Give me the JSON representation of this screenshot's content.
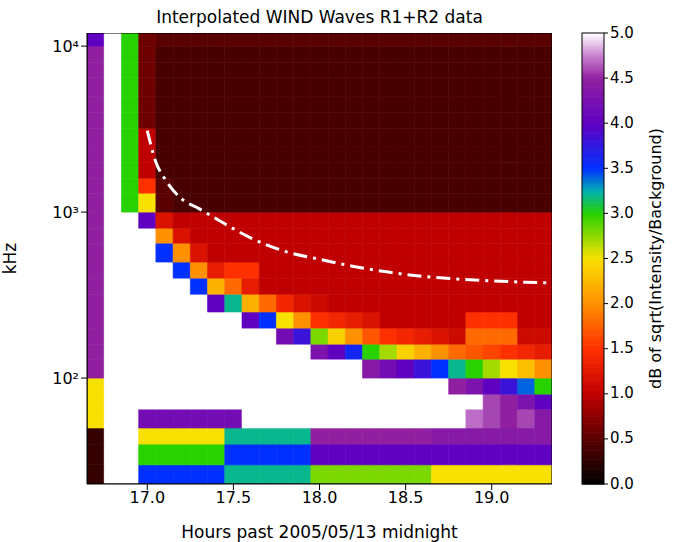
{
  "chart_data": {
    "type": "heatmap",
    "title": "Interpolated WIND Waves R1+R2 data",
    "x_label": "Hours past 2005/05/13 midnight",
    "y_label": "kHz",
    "log": "y",
    "grid": false,
    "xlim": [
      16.65,
      19.35
    ],
    "xticks": [
      {
        "value": 17,
        "label": "17.0"
      },
      {
        "value": 17.5,
        "label": "17.5"
      },
      {
        "value": 18,
        "label": "18.0"
      },
      {
        "value": 18.5,
        "label": "18.5"
      },
      {
        "value": 19,
        "label": "19.0"
      }
    ],
    "ylim": [
      23,
      12000
    ],
    "yticks": [
      {
        "value": 100,
        "label": "10²"
      },
      {
        "value": 1000,
        "label": "10³"
      },
      {
        "value": 10000,
        "label": "10⁴"
      }
    ],
    "x_bins": [
      16.65,
      16.75,
      16.85,
      16.95,
      17.05,
      17.15,
      17.25,
      17.35,
      17.45,
      17.55,
      17.65,
      17.75,
      17.85,
      17.95,
      18.05,
      18.15,
      18.25,
      18.35,
      18.45,
      18.55,
      18.65,
      18.75,
      18.85,
      18.95,
      19.05,
      19.15,
      19.25,
      19.35
    ],
    "y_bins": [
      23,
      30,
      40,
      50,
      65,
      80,
      100,
      130,
      160,
      200,
      250,
      320,
      400,
      500,
      650,
      800,
      1000,
      1300,
      1600,
      2000,
      2500,
      3200,
      4000,
      5000,
      6500,
      8000,
      10000,
      12000
    ],
    "cells": [
      [
        0.3,
        5,
        5,
        3.5,
        3.5,
        3.5,
        3.5,
        3.5,
        3.2,
        3.2,
        3.2,
        3.2,
        3.2,
        2.8,
        2.8,
        2.8,
        2.8,
        2.8,
        2.8,
        2.8,
        2.5,
        2.5,
        2.5,
        2.5,
        2.5,
        2.5,
        2.5
      ],
      [
        0.3,
        5,
        5,
        3,
        3,
        3,
        3,
        3,
        3.5,
        3.5,
        3.5,
        3.5,
        3.5,
        4,
        4,
        4,
        4,
        4,
        4,
        4,
        4,
        4,
        4,
        4,
        4,
        4,
        4
      ],
      [
        0.3,
        5,
        5,
        2.5,
        2.5,
        2.5,
        2.5,
        2.5,
        3.2,
        3.2,
        3.2,
        3.2,
        3.2,
        4.5,
        4.5,
        4.5,
        4.5,
        4.5,
        4.5,
        4.5,
        4.4,
        4.4,
        4.4,
        4.4,
        4.4,
        4.4,
        4.4
      ],
      [
        2.5,
        5,
        5,
        4.2,
        4.2,
        4.2,
        4.2,
        4.2,
        4.2,
        5,
        5,
        5,
        5,
        5,
        5,
        5,
        5,
        5,
        5,
        5,
        5,
        5,
        4.7,
        4.6,
        4.5,
        4.6,
        4.4
      ],
      [
        2.5,
        5,
        5,
        5,
        5,
        5,
        5,
        5,
        5,
        5,
        5,
        5,
        5,
        5,
        5,
        5,
        5,
        5,
        5,
        5,
        5,
        5,
        5,
        4.6,
        4.5,
        4.3,
        4.0
      ],
      [
        2.5,
        5,
        5,
        5,
        5,
        5,
        5,
        5,
        5,
        5,
        5,
        5,
        5,
        5,
        5,
        5,
        5,
        5,
        5,
        5,
        5,
        4.5,
        4.3,
        4.0,
        3.8,
        3.4,
        3.0
      ],
      [
        4.5,
        5,
        5,
        5,
        5,
        5,
        5,
        5,
        5,
        5,
        5,
        5,
        5,
        5,
        5,
        5,
        4.4,
        4.2,
        4.0,
        3.8,
        3.5,
        3.2,
        3.0,
        2.7,
        2.5,
        2.3,
        2.0
      ],
      [
        4.5,
        5,
        5,
        5,
        5,
        5,
        5,
        5,
        5,
        5,
        5,
        5,
        5,
        4.3,
        4.0,
        3.6,
        3.0,
        2.7,
        2.4,
        2.2,
        2.0,
        1.8,
        1.7,
        1.6,
        1.5,
        1.4,
        1.3
      ],
      [
        4.5,
        5,
        5,
        5,
        5,
        5,
        5,
        5,
        5,
        5,
        5,
        4.2,
        3.8,
        2.8,
        2.4,
        2.0,
        1.7,
        1.5,
        1.4,
        1.3,
        1.2,
        1.1,
        1.8,
        1.8,
        1.8,
        1.1,
        1.1
      ],
      [
        4.5,
        5,
        5,
        5,
        5,
        5,
        5,
        5,
        5,
        4,
        3.5,
        2.5,
        2.0,
        1.5,
        1.4,
        1.3,
        1.2,
        1,
        1,
        1,
        1,
        1,
        1.5,
        1.5,
        1.5,
        1,
        1
      ],
      [
        4.5,
        5,
        5,
        5,
        5,
        5,
        5,
        4,
        3.2,
        2.2,
        1.8,
        1.4,
        1.2,
        1.1,
        1,
        1,
        1,
        1,
        1,
        1,
        1,
        1,
        1,
        1,
        1,
        1,
        1
      ],
      [
        4.5,
        5,
        5,
        5,
        5,
        5,
        3.5,
        2.2,
        1.8,
        1.3,
        1,
        1,
        1,
        1,
        1,
        1,
        1,
        1,
        1,
        1,
        1,
        1,
        1,
        1,
        1,
        1,
        1
      ],
      [
        4.5,
        5,
        5,
        5,
        5,
        3.5,
        2.0,
        1.3,
        1.5,
        1.5,
        1,
        1,
        1,
        1,
        1,
        1,
        1,
        1,
        1,
        1,
        1,
        1,
        1,
        1,
        1,
        1,
        1
      ],
      [
        4.5,
        5,
        5,
        5,
        3.5,
        2.0,
        1.2,
        1,
        1,
        1,
        1,
        1,
        1,
        1,
        1,
        1,
        1,
        1,
        1,
        1,
        1,
        1,
        1,
        1,
        1,
        1,
        1
      ],
      [
        4.5,
        5,
        5,
        5,
        2.0,
        1.2,
        1,
        1,
        1,
        1,
        1,
        1,
        1,
        1,
        1,
        1,
        1,
        1,
        1,
        1,
        1,
        1,
        1,
        1,
        1,
        1,
        1
      ],
      [
        4.5,
        5,
        5,
        4,
        1.2,
        1,
        1,
        1,
        1,
        1,
        1,
        1,
        1,
        1,
        1,
        1,
        1,
        1,
        1,
        1,
        1,
        1,
        1,
        1,
        1,
        1,
        1
      ],
      [
        4.5,
        5,
        3,
        2.5,
        0.5,
        0.4,
        0.4,
        0.4,
        0.4,
        0.4,
        0.4,
        0.4,
        0.4,
        0.4,
        0.4,
        0.4,
        0.4,
        0.4,
        0.4,
        0.4,
        0.4,
        0.4,
        0.4,
        0.4,
        0.4,
        0.4,
        0.4
      ],
      [
        4.5,
        5,
        3,
        1.5,
        0.5,
        0.4,
        0.4,
        0.4,
        0.4,
        0.4,
        0.4,
        0.4,
        0.4,
        0.4,
        0.4,
        0.4,
        0.4,
        0.4,
        0.4,
        0.4,
        0.4,
        0.4,
        0.4,
        0.4,
        0.4,
        0.4,
        0.4
      ],
      [
        4.5,
        5,
        3,
        1.0,
        0.4,
        0.4,
        0.4,
        0.4,
        0.4,
        0.4,
        0.4,
        0.4,
        0.4,
        0.4,
        0.4,
        0.4,
        0.4,
        0.4,
        0.4,
        0.4,
        0.4,
        0.4,
        0.4,
        0.4,
        0.4,
        0.4,
        0.4
      ],
      [
        4.5,
        5,
        3,
        1.0,
        0.4,
        0.4,
        0.4,
        0.4,
        0.4,
        0.4,
        0.4,
        0.4,
        0.4,
        0.4,
        0.4,
        0.4,
        0.4,
        0.4,
        0.4,
        0.4,
        0.4,
        0.4,
        0.4,
        0.4,
        0.4,
        0.4,
        0.4
      ],
      [
        4.5,
        5,
        3,
        1.0,
        0.4,
        0.4,
        0.4,
        0.4,
        0.4,
        0.4,
        0.4,
        0.4,
        0.4,
        0.4,
        0.4,
        0.4,
        0.4,
        0.4,
        0.4,
        0.4,
        0.4,
        0.4,
        0.4,
        0.4,
        0.4,
        0.4,
        0.4
      ],
      [
        4.5,
        5,
        3,
        0.6,
        0.4,
        0.4,
        0.4,
        0.4,
        0.4,
        0.4,
        0.4,
        0.4,
        0.4,
        0.4,
        0.4,
        0.4,
        0.4,
        0.4,
        0.4,
        0.4,
        0.4,
        0.4,
        0.4,
        0.4,
        0.4,
        0.4,
        0.4
      ],
      [
        4.5,
        5,
        3,
        0.6,
        0.4,
        0.4,
        0.4,
        0.4,
        0.4,
        0.4,
        0.4,
        0.4,
        0.4,
        0.4,
        0.4,
        0.4,
        0.4,
        0.4,
        0.4,
        0.4,
        0.4,
        0.4,
        0.4,
        0.4,
        0.4,
        0.4,
        0.4
      ],
      [
        4.5,
        5,
        3,
        0.6,
        0.4,
        0.4,
        0.4,
        0.4,
        0.4,
        0.4,
        0.4,
        0.4,
        0.4,
        0.4,
        0.4,
        0.4,
        0.4,
        0.4,
        0.4,
        0.4,
        0.4,
        0.4,
        0.4,
        0.4,
        0.4,
        0.4,
        0.4
      ],
      [
        4.5,
        5,
        3,
        0.6,
        0.4,
        0.4,
        0.4,
        0.4,
        0.4,
        0.4,
        0.4,
        0.4,
        0.4,
        0.4,
        0.4,
        0.4,
        0.4,
        0.4,
        0.4,
        0.4,
        0.4,
        0.4,
        0.4,
        0.4,
        0.4,
        0.4,
        0.4
      ],
      [
        4.5,
        5,
        3,
        0.6,
        0.4,
        0.4,
        0.4,
        0.4,
        0.4,
        0.4,
        0.4,
        0.4,
        0.4,
        0.4,
        0.4,
        0.4,
        0.4,
        0.4,
        0.4,
        0.4,
        0.4,
        0.4,
        0.4,
        0.4,
        0.4,
        0.4,
        0.4
      ],
      [
        4.0,
        5,
        3,
        0.6,
        0.5,
        0.5,
        0.5,
        0.5,
        0.5,
        0.5,
        0.5,
        0.5,
        0.5,
        0.5,
        0.5,
        0.5,
        0.5,
        0.5,
        0.5,
        0.5,
        0.5,
        0.5,
        0.5,
        0.5,
        0.5,
        0.5,
        0.5
      ]
    ],
    "colorbar": {
      "label": "dB of sqrt(Intensity/Background)",
      "range": [
        0,
        5
      ],
      "ticks": [
        {
          "value": 0,
          "label": "0.0"
        },
        {
          "value": 0.5,
          "label": "0.5"
        },
        {
          "value": 1,
          "label": "1.0"
        },
        {
          "value": 1.5,
          "label": "1.5"
        },
        {
          "value": 2,
          "label": "2.0"
        },
        {
          "value": 2.5,
          "label": "2.5"
        },
        {
          "value": 3,
          "label": "3.0"
        },
        {
          "value": 3.5,
          "label": "3.5"
        },
        {
          "value": 4,
          "label": "4.0"
        },
        {
          "value": 4.5,
          "label": "4.5"
        },
        {
          "value": 5,
          "label": "5.0"
        }
      ]
    },
    "series": [
      {
        "type": "line",
        "color": "#ffffff",
        "line_style": "dashdot",
        "x": [
          17.0,
          17.05,
          17.1,
          17.2,
          17.3,
          17.45,
          17.6,
          17.8,
          18.0,
          18.2,
          18.4,
          18.6,
          18.8,
          19.0,
          19.2,
          19.35
        ],
        "values": [
          3100,
          2000,
          1600,
          1200,
          1050,
          850,
          700,
          580,
          520,
          470,
          435,
          410,
          395,
          385,
          378,
          375
        ]
      }
    ]
  }
}
